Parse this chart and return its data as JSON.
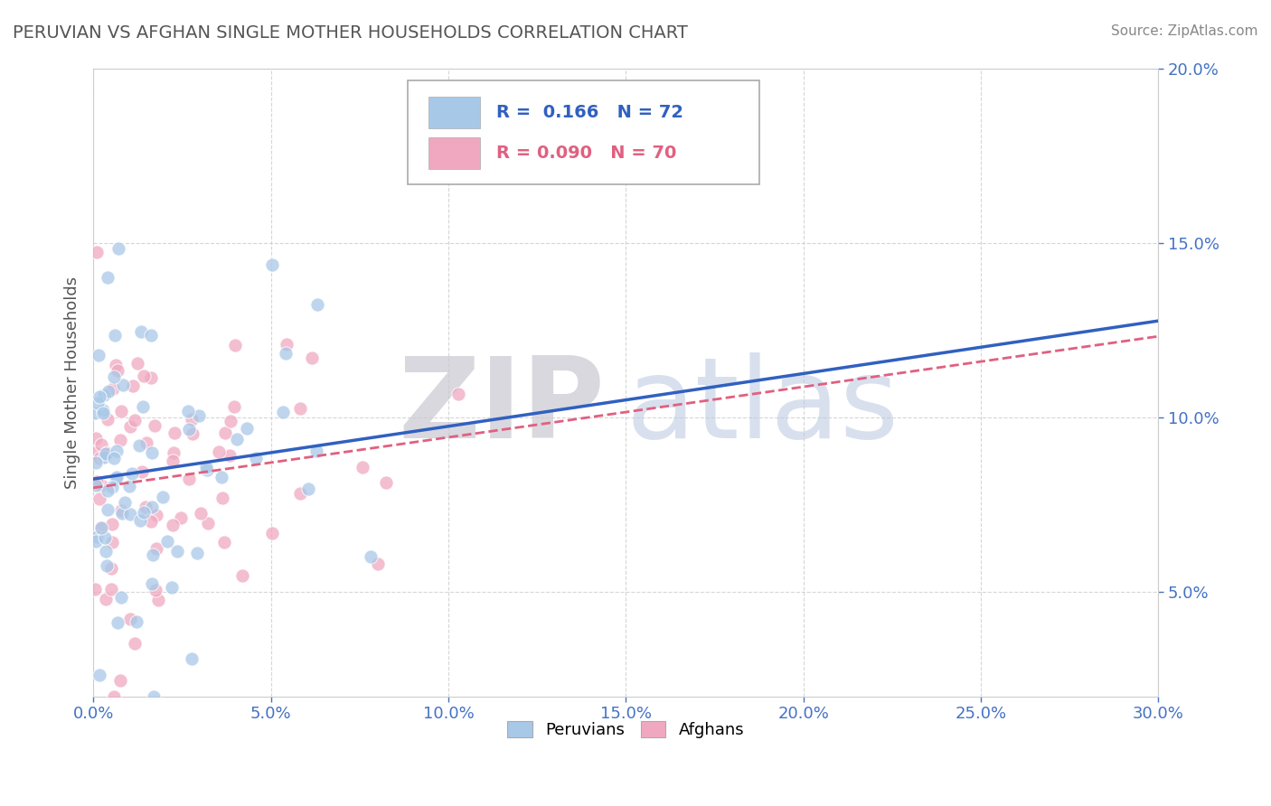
{
  "title": "PERUVIAN VS AFGHAN SINGLE MOTHER HOUSEHOLDS CORRELATION CHART",
  "source": "Source: ZipAtlas.com",
  "ylabel": "Single Mother Households",
  "xlim": [
    0.0,
    0.3
  ],
  "ylim": [
    0.02,
    0.2
  ],
  "xticks": [
    0.0,
    0.05,
    0.1,
    0.15,
    0.2,
    0.25,
    0.3
  ],
  "yticks": [
    0.05,
    0.1,
    0.15,
    0.2
  ],
  "ytick_labels_right": [
    "5.0%",
    "10.0%",
    "15.0%",
    "20.0%"
  ],
  "peruvian_color": "#A8C8E8",
  "afghan_color": "#F0A8C0",
  "peruvian_R": 0.166,
  "peruvian_N": 72,
  "afghan_R": 0.09,
  "afghan_N": 70,
  "peruvian_line_color": "#3060C0",
  "afghan_line_color": "#E06080",
  "legend_label_peruvians": "Peruvians",
  "legend_label_afghans": "Afghans",
  "watermark_zip": "ZIP",
  "watermark_atlas": "atlas",
  "background_color": "#FFFFFF",
  "grid_color": "#CCCCCC",
  "title_color": "#555555",
  "axis_label_color": "#555555",
  "tick_color": "#4472C4",
  "legend_R_color": "#3060C0",
  "legend_border_color": "#AAAAAA"
}
